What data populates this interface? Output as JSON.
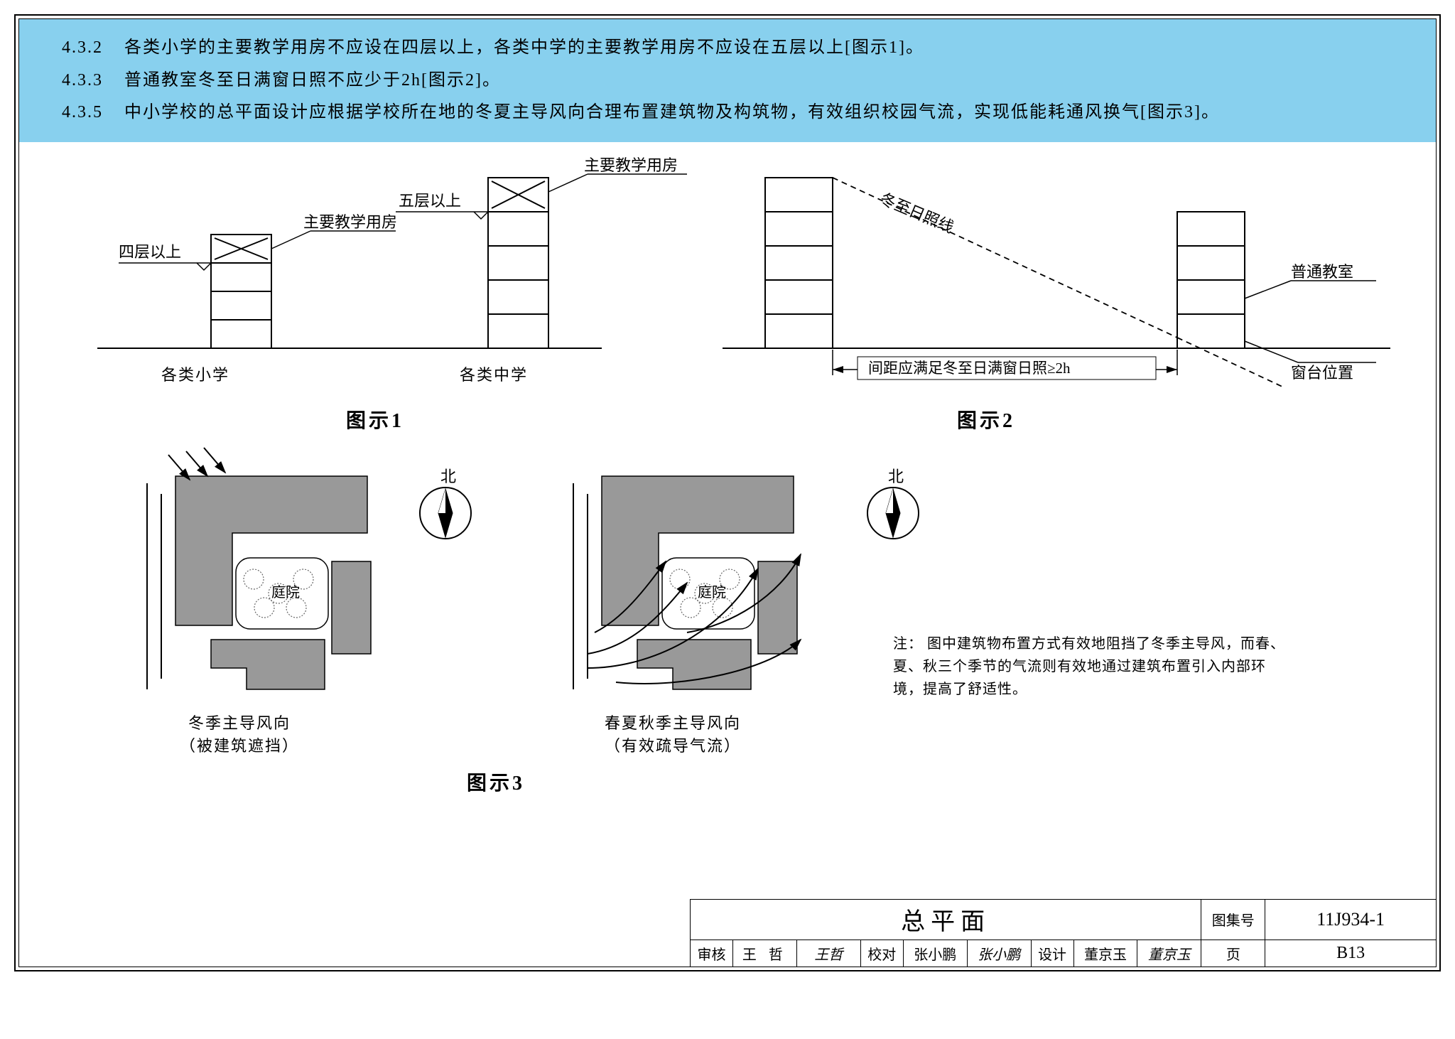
{
  "page": {
    "background": "#ffffff",
    "border_color": "#000000",
    "header_band_color": "#88d0ee"
  },
  "clauses": [
    {
      "num": "4.3.2",
      "text": "各类小学的主要教学用房不应设在四层以上，各类中学的主要教学用房不应设在五层以上[图示1]。"
    },
    {
      "num": "4.3.3",
      "text": "普通教室冬至日满窗日照不应少于2h[图示2]。"
    },
    {
      "num": "4.3.5",
      "text": "中小学校的总平面设计应根据学校所在地的冬夏主导风向合理布置建筑物及构筑物，有效组织校园气流，实现低能耗通风换气[图示3]。"
    }
  ],
  "fig1": {
    "caption": "图示1",
    "left": {
      "type": "building-elevation",
      "label": "各类小学",
      "floor_label": "四层以上",
      "room_label": "主要教学用房",
      "total_floors": 4,
      "marked_floor_has_x": true
    },
    "right": {
      "type": "building-elevation",
      "label": "各类中学",
      "floor_label": "五层以上",
      "room_label": "主要教学用房",
      "total_floors": 5,
      "marked_floor_has_x": true
    },
    "colors": {
      "line": "#000000",
      "fill": "#ffffff"
    },
    "stroke_width": 2
  },
  "fig2": {
    "caption": "图示2",
    "type": "sun-angle-section",
    "left_building_floors": 5,
    "right_building_floors": 4,
    "sun_line_label": "冬至日照线",
    "sun_line_dash": "8,6",
    "distance_label": "间距应满足冬至日满窗日照≥2h",
    "right_labels": {
      "room": "普通教室",
      "sill": "窗台位置"
    },
    "colors": {
      "line": "#000000",
      "fill": "#ffffff"
    },
    "stroke_width": 2
  },
  "fig3": {
    "caption": "图示3",
    "type": "site-plan-pair",
    "north_label": "北",
    "courtyard_label": "庭院",
    "left": {
      "caption1": "冬季主导风向",
      "caption2": "（被建筑遮挡）",
      "arrow_style": "straight"
    },
    "right": {
      "caption1": "春夏秋季主导风向",
      "caption2": "（有效疏导气流）",
      "arrow_style": "curved"
    },
    "note_prefix": "注：",
    "note_text": "图中建筑物布置方式有效地阻挡了冬季主导风，而春、夏、秋三个季节的气流则有效地通过建筑布置引入内部环境，提高了舒适性。",
    "colors": {
      "building_fill": "#999999",
      "line": "#000000",
      "tree_stroke": "#777777"
    }
  },
  "title_block": {
    "title": "总平面",
    "atlas_label": "图集号",
    "atlas_no": "11J934-1",
    "page_label": "页",
    "page_no": "B13",
    "roles": {
      "review_label": "审核",
      "review_name": "王 哲",
      "review_sig": "王哲",
      "check_label": "校对",
      "check_name": "张小鹏",
      "check_sig": "张小鹏",
      "design_label": "设计",
      "design_name": "董京玉",
      "design_sig": "董京玉"
    },
    "font_title_size": 34,
    "font_cell_size": 20
  }
}
